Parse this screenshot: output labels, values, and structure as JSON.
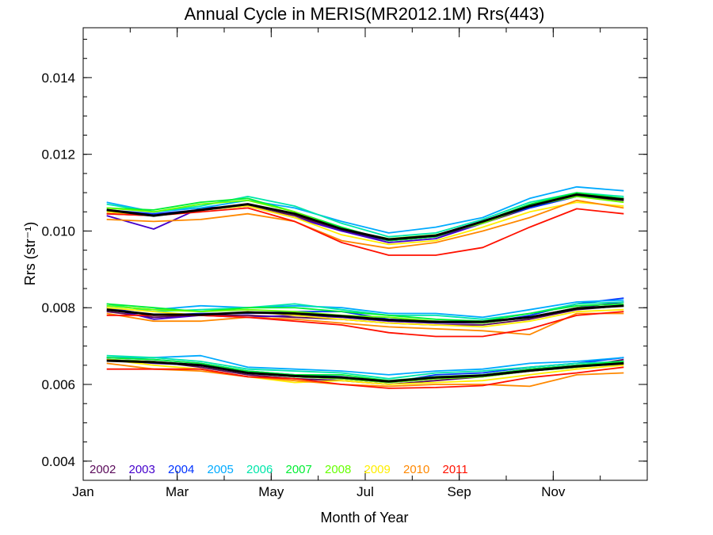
{
  "chart_data": {
    "type": "line",
    "title": "Annual Cycle in MERIS(MR2012.1M) Rrs(443)",
    "xlabel": "Month of Year",
    "ylabel": "Rrs (str⁻¹)",
    "xlim": [
      1,
      13
    ],
    "ylim": [
      0.0035,
      0.0153
    ],
    "x_ticks": [
      {
        "value": 1,
        "label": "Jan"
      },
      {
        "value": 3,
        "label": "Mar"
      },
      {
        "value": 5,
        "label": "May"
      },
      {
        "value": 7,
        "label": "Jul"
      },
      {
        "value": 9,
        "label": "Sep"
      },
      {
        "value": 11,
        "label": "Nov"
      }
    ],
    "y_ticks": [
      {
        "value": 0.004,
        "label": "0.004"
      },
      {
        "value": 0.006,
        "label": "0.006"
      },
      {
        "value": 0.008,
        "label": "0.008"
      },
      {
        "value": 0.01,
        "label": "0.010"
      },
      {
        "value": 0.012,
        "label": "0.012"
      },
      {
        "value": 0.014,
        "label": "0.014"
      }
    ],
    "x": [
      1.5,
      2.5,
      3.5,
      4.5,
      5.5,
      6.5,
      7.5,
      8.5,
      9.5,
      10.5,
      11.5,
      12.5
    ],
    "legend_placement": "bottom-left",
    "series": [
      {
        "name": "2002",
        "color": "#5a0a5a",
        "groups": [
          [
            0.01045,
            0.0104,
            0.01055,
            0.01065,
            0.0104,
            0.01,
            0.00975,
            0.00985,
            0.0102,
            0.0106,
            0.0109,
            0.0108
          ],
          [
            0.0079,
            0.00775,
            0.0078,
            0.0078,
            0.00775,
            0.0077,
            0.0076,
            0.00755,
            0.00755,
            0.0077,
            0.00795,
            0.00805
          ],
          [
            0.00665,
            0.0066,
            0.00645,
            0.00625,
            0.00615,
            0.0061,
            0.006,
            0.0061,
            0.0062,
            0.00635,
            0.00645,
            0.00665
          ]
        ]
      },
      {
        "name": "2003",
        "color": "#4400cc",
        "groups": [
          [
            0.0104,
            0.01005,
            0.0106,
            0.01065,
            0.01035,
            0.01,
            0.0097,
            0.0098,
            0.0102,
            0.01065,
            0.01095,
            0.01085
          ],
          [
            0.008,
            0.0077,
            0.0078,
            0.00775,
            0.0078,
            0.00775,
            0.00765,
            0.0076,
            0.0076,
            0.00775,
            0.008,
            0.00815
          ],
          [
            0.00665,
            0.00655,
            0.0065,
            0.0063,
            0.0062,
            0.00615,
            0.00605,
            0.00615,
            0.00625,
            0.0064,
            0.0065,
            0.0066
          ]
        ]
      },
      {
        "name": "2004",
        "color": "#0033ff",
        "groups": [
          [
            0.01055,
            0.01045,
            0.01055,
            0.0107,
            0.01045,
            0.01005,
            0.00975,
            0.00985,
            0.01025,
            0.0106,
            0.0109,
            0.01085
          ],
          [
            0.008,
            0.0078,
            0.00785,
            0.00785,
            0.0079,
            0.0079,
            0.0077,
            0.00765,
            0.0076,
            0.0078,
            0.0081,
            0.00825
          ],
          [
            0.0067,
            0.00665,
            0.00655,
            0.00635,
            0.00625,
            0.0062,
            0.00605,
            0.00625,
            0.0063,
            0.00645,
            0.00655,
            0.0067
          ]
        ]
      },
      {
        "name": "2005",
        "color": "#00aaff",
        "groups": [
          [
            0.01075,
            0.0105,
            0.0106,
            0.0108,
            0.0106,
            0.01025,
            0.00995,
            0.0101,
            0.01035,
            0.01085,
            0.01115,
            0.01105
          ],
          [
            0.00805,
            0.00795,
            0.00805,
            0.008,
            0.00805,
            0.008,
            0.00785,
            0.00785,
            0.00775,
            0.00795,
            0.00815,
            0.0082
          ],
          [
            0.0067,
            0.0067,
            0.00675,
            0.00645,
            0.0064,
            0.00635,
            0.00625,
            0.00635,
            0.0064,
            0.00655,
            0.0066,
            0.0067
          ]
        ]
      },
      {
        "name": "2006",
        "color": "#00e6aa",
        "groups": [
          [
            0.0107,
            0.0105,
            0.01065,
            0.0109,
            0.01065,
            0.0102,
            0.00985,
            0.00995,
            0.0103,
            0.01075,
            0.011,
            0.0109
          ],
          [
            0.0081,
            0.0079,
            0.00795,
            0.008,
            0.0081,
            0.00795,
            0.0078,
            0.0078,
            0.0077,
            0.00785,
            0.0081,
            0.00815
          ],
          [
            0.00675,
            0.0067,
            0.0066,
            0.0064,
            0.00635,
            0.0063,
            0.00615,
            0.0063,
            0.00635,
            0.00645,
            0.00655,
            0.0066
          ]
        ]
      },
      {
        "name": "2007",
        "color": "#00ee33",
        "groups": [
          [
            0.0106,
            0.01055,
            0.01075,
            0.01085,
            0.0105,
            0.0101,
            0.00975,
            0.00985,
            0.01025,
            0.0107,
            0.011,
            0.01085
          ],
          [
            0.0081,
            0.008,
            0.0079,
            0.008,
            0.008,
            0.0079,
            0.0078,
            0.0077,
            0.00765,
            0.00785,
            0.00805,
            0.0081
          ],
          [
            0.0067,
            0.00665,
            0.00655,
            0.00635,
            0.00625,
            0.00625,
            0.0061,
            0.0062,
            0.00625,
            0.0064,
            0.0065,
            0.0066
          ]
        ]
      },
      {
        "name": "2008",
        "color": "#66ff00",
        "groups": [
          [
            0.0106,
            0.0105,
            0.0107,
            0.0108,
            0.0105,
            0.01005,
            0.0098,
            0.0099,
            0.0102,
            0.01065,
            0.0109,
            0.01075
          ],
          [
            0.00805,
            0.00795,
            0.0079,
            0.00795,
            0.0079,
            0.0078,
            0.00775,
            0.00765,
            0.0076,
            0.00775,
            0.008,
            0.00805
          ],
          [
            0.00665,
            0.0066,
            0.0065,
            0.0063,
            0.0062,
            0.00615,
            0.00605,
            0.00615,
            0.0062,
            0.00635,
            0.00645,
            0.00655
          ]
        ]
      },
      {
        "name": "2009",
        "color": "#ffee00",
        "groups": [
          [
            0.0105,
            0.0104,
            0.01055,
            0.01065,
            0.01035,
            0.0099,
            0.00965,
            0.00975,
            0.0101,
            0.0105,
            0.01075,
            0.01065
          ],
          [
            0.008,
            0.0079,
            0.0078,
            0.0079,
            0.0078,
            0.0077,
            0.0076,
            0.00755,
            0.0075,
            0.00765,
            0.0079,
            0.00795
          ],
          [
            0.00665,
            0.0065,
            0.0064,
            0.0062,
            0.00605,
            0.0061,
            0.006,
            0.00605,
            0.0061,
            0.00625,
            0.0064,
            0.0065
          ]
        ]
      },
      {
        "name": "2010",
        "color": "#ff8800",
        "groups": [
          [
            0.0103,
            0.01025,
            0.0103,
            0.01045,
            0.01025,
            0.00975,
            0.00955,
            0.0097,
            0.01,
            0.01035,
            0.0108,
            0.0106
          ],
          [
            0.00785,
            0.00765,
            0.00765,
            0.00775,
            0.0077,
            0.0076,
            0.0075,
            0.00745,
            0.0074,
            0.0073,
            0.00785,
            0.00785
          ],
          [
            0.00655,
            0.0064,
            0.00635,
            0.0062,
            0.0061,
            0.006,
            0.00595,
            0.006,
            0.006,
            0.00595,
            0.00625,
            0.0063
          ]
        ]
      },
      {
        "name": "2011",
        "color": "#ff1100",
        "groups": [
          [
            0.01045,
            0.0104,
            0.0105,
            0.0106,
            0.01025,
            0.0097,
            0.00937,
            0.00937,
            0.00957,
            0.0101,
            0.01058,
            0.01045
          ],
          [
            0.0078,
            0.0078,
            0.0078,
            0.00775,
            0.00765,
            0.00755,
            0.00735,
            0.00725,
            0.00725,
            0.00745,
            0.0078,
            0.0079
          ],
          [
            0.0064,
            0.0064,
            0.0064,
            0.0062,
            0.00615,
            0.006,
            0.0059,
            0.00592,
            0.00597,
            0.00618,
            0.0063,
            0.00645
          ]
        ]
      },
      {
        "color": "#000000",
        "bold": true,
        "groups": [
          [
            0.01055,
            0.0104,
            0.01055,
            0.0107,
            0.01045,
            0.01005,
            0.00978,
            0.00988,
            0.01025,
            0.01065,
            0.01095,
            0.01082
          ],
          [
            0.00795,
            0.00782,
            0.00782,
            0.00788,
            0.00785,
            0.00778,
            0.00768,
            0.00763,
            0.00763,
            0.00775,
            0.00798,
            0.00805
          ],
          [
            0.00662,
            0.00658,
            0.0065,
            0.0063,
            0.00622,
            0.00618,
            0.00608,
            0.00618,
            0.00623,
            0.00636,
            0.00647,
            0.00655
          ]
        ]
      }
    ]
  }
}
